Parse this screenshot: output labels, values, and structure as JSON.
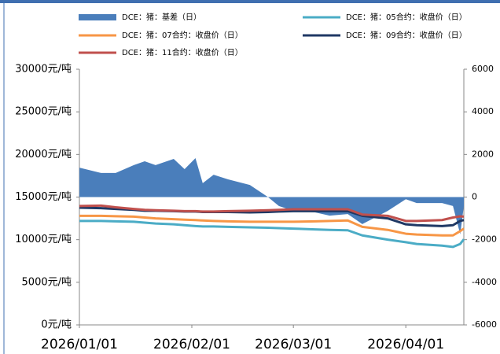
{
  "chart_data": {
    "type": "line",
    "x": [
      "2026/01/01",
      "2026/01/07",
      "2026/01/11",
      "2026/01/16",
      "2026/01/19",
      "2026/01/22",
      "2026/01/27",
      "2026/01/30",
      "2026/02/02",
      "2026/02/04",
      "2026/02/07",
      "2026/02/11",
      "2026/02/17",
      "2026/02/22",
      "2026/02/25",
      "2026/03/01",
      "2026/03/07",
      "2026/03/11",
      "2026/03/16",
      "2026/03/20",
      "2026/03/27",
      "2026/04/01",
      "2026/04/04",
      "2026/04/11",
      "2026/04/14",
      "2026/04/16",
      "2026/04/17"
    ],
    "xlim": [
      "2026/01/01",
      "2026/04/17"
    ],
    "xticks": [
      "2026/01/01",
      "2026/02/01",
      "2026/03/01",
      "2026/04/01"
    ],
    "series": [
      {
        "name": "DCE：猪：基差（日）",
        "type": "area",
        "axis": "y2",
        "color": "#4a7ebb",
        "values": [
          1380,
          1130,
          1130,
          1500,
          1680,
          1500,
          1790,
          1310,
          1830,
          650,
          1050,
          830,
          570,
          0,
          -420,
          -650,
          -720,
          -870,
          -800,
          -1270,
          -650,
          -100,
          -280,
          -280,
          -420,
          -1750,
          -420
        ]
      },
      {
        "name": "DCE：猪：05合约：收盘价（日）",
        "type": "line",
        "color": "#4bacc6",
        "values": [
          12200,
          12200,
          12150,
          12100,
          12000,
          11900,
          11800,
          11700,
          11600,
          11550,
          11550,
          11500,
          11450,
          11400,
          11350,
          11300,
          11200,
          11150,
          11100,
          10500,
          10000,
          9700,
          9500,
          9300,
          9150,
          9500,
          10050
        ]
      },
      {
        "name": "DCE：猪：07合约：收盘价（日）",
        "type": "line",
        "color": "#f79646",
        "values": [
          12800,
          12800,
          12750,
          12700,
          12600,
          12500,
          12400,
          12350,
          12300,
          12250,
          12200,
          12150,
          12100,
          12100,
          12100,
          12100,
          12150,
          12200,
          12250,
          11500,
          11150,
          10700,
          10600,
          10500,
          10500,
          11000,
          11300
        ]
      },
      {
        "name": "DCE：猪：09合约：收盘价（日）",
        "type": "line",
        "color": "#1f3864",
        "values": [
          13750,
          13700,
          13600,
          13500,
          13400,
          13400,
          13350,
          13300,
          13300,
          13250,
          13250,
          13250,
          13200,
          13250,
          13300,
          13350,
          13350,
          13350,
          13350,
          12800,
          12500,
          11800,
          11700,
          11600,
          11700,
          12200,
          12300
        ]
      },
      {
        "name": "DCE：猪：11合约：收盘价（日）",
        "type": "line",
        "color": "#c0504d",
        "values": [
          13950,
          14000,
          13800,
          13600,
          13500,
          13450,
          13400,
          13350,
          13350,
          13300,
          13300,
          13350,
          13400,
          13450,
          13500,
          13570,
          13570,
          13570,
          13570,
          12950,
          12800,
          12200,
          12200,
          12300,
          12600,
          12740,
          12700
        ]
      }
    ],
    "ylim": [
      0,
      30000
    ],
    "yticks": [
      {
        "value": 0,
        "label": "0元/吨"
      },
      {
        "value": 5000,
        "label": "5000元/吨"
      },
      {
        "value": 10000,
        "label": "10000元/吨"
      },
      {
        "value": 15000,
        "label": "15000元/吨"
      },
      {
        "value": 20000,
        "label": "20000元/吨"
      },
      {
        "value": 25000,
        "label": "25000元/吨"
      },
      {
        "value": 30000,
        "label": "30000元/吨"
      }
    ],
    "y2lim": [
      -6000,
      6000
    ],
    "y2ticks": [
      -6000,
      -4000,
      -2000,
      0,
      2000,
      4000,
      6000
    ]
  }
}
